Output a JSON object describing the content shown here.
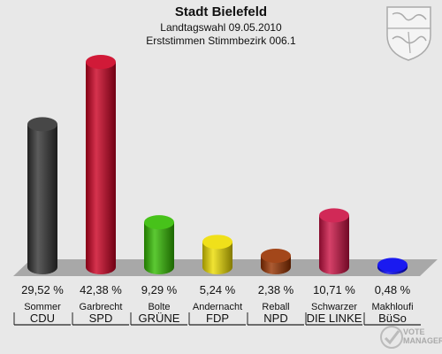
{
  "title": "Stadt Bielefeld",
  "subtitle": "Landtagswahl 09.05.2010",
  "subtitle2": "Erststimmen Stimmbezirk 006.1",
  "watermark": {
    "line1": "VOTE",
    "line2": "MANAGER"
  },
  "crest_icon": "nrw-coat-of-arms-icon",
  "chart_data": {
    "type": "bar",
    "categories": [
      "CDU",
      "SPD",
      "GRÜNE",
      "FDP",
      "NPD",
      "DIE LINKE",
      "BüSo"
    ],
    "candidates": [
      "Sommer",
      "Garbrecht",
      "Bolte",
      "Andernacht",
      "Reball",
      "Schwarzer",
      "Makhloufi"
    ],
    "values": [
      29.52,
      42.38,
      9.29,
      5.24,
      2.38,
      10.71,
      0.48
    ],
    "value_labels": [
      "29,52 %",
      "42,38 %",
      "9,29 %",
      "5,24 %",
      "2,38 %",
      "10,71 %",
      "0,48 %"
    ],
    "colors": [
      "#333333",
      "#cc0022",
      "#33bb00",
      "#eedd00",
      "#993300",
      "#cc1144",
      "#0000ee"
    ],
    "ylim": [
      0,
      42.38
    ]
  }
}
